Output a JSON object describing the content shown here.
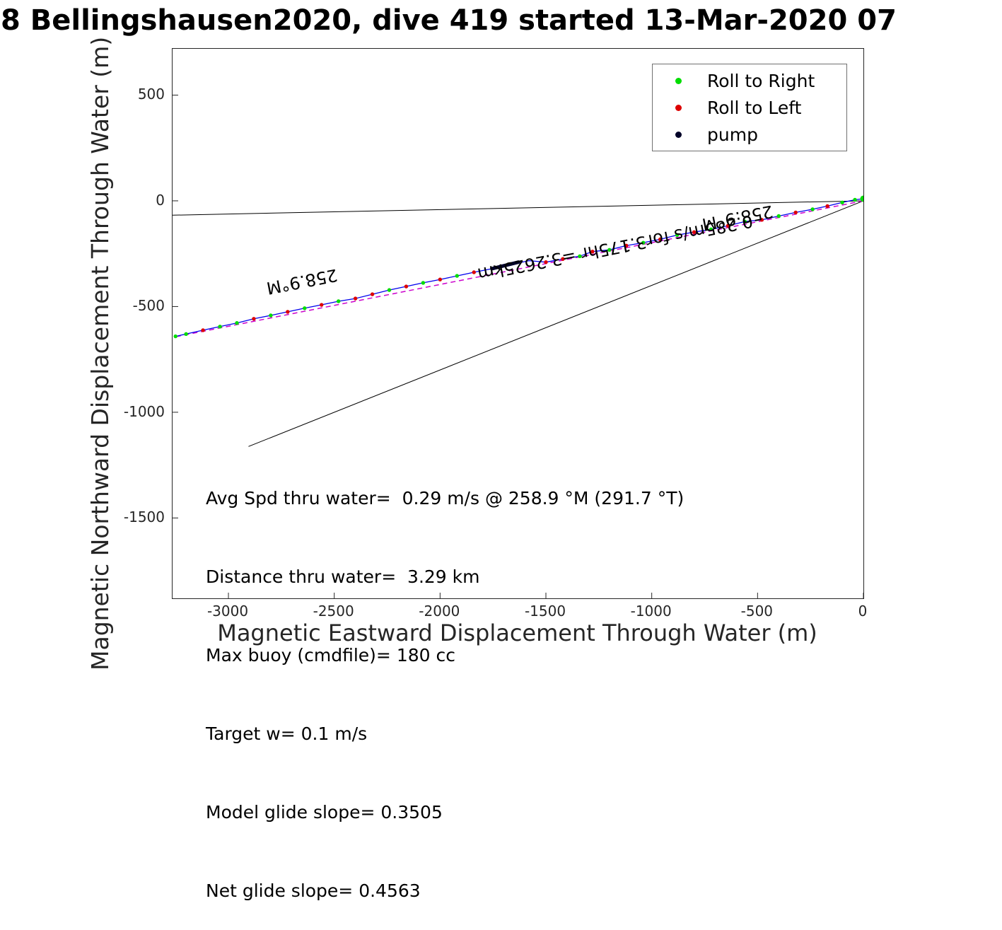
{
  "legend": {
    "items": [
      {
        "label": "Roll to Right",
        "color": "#00dd00"
      },
      {
        "label": "Roll to Left",
        "color": "#dd0000"
      },
      {
        "label": "pump",
        "color": "#000028"
      }
    ]
  },
  "info": {
    "lines": [
      "Avg Spd thru water=  0.29 m/s @ 258.9 °M (291.7 °T)",
      "Distance thru water=  3.29 km",
      "Max buoy (cmdfile)= 180 cc",
      "Target w= 0.1 m/s",
      "Model glide slope= 0.3505",
      "Net glide slope= 0.4563"
    ]
  },
  "chart_data": {
    "type": "line",
    "title": "8 Bellingshausen2020, dive 419 started 13-Mar-2020 07",
    "xlabel": "Magnetic Eastward Displacement Through Water (m)",
    "ylabel": "Magnetic Northward Displacement Through Water (m)",
    "xlim": [
      -3264,
      0
    ],
    "ylim": [
      -1880,
      719
    ],
    "x_ticks": [
      -3000,
      -2500,
      -2000,
      -1500,
      -1000,
      -500,
      0
    ],
    "y_ticks": [
      500,
      0,
      -500,
      -1000,
      -1500
    ],
    "grid": false,
    "legend_position": "top-right",
    "track": {
      "name": "dive track through water",
      "color": "#0000ee",
      "points": [
        [
          0,
          10
        ],
        [
          -40,
          5
        ],
        [
          -100,
          -8
        ],
        [
          -170,
          -25
        ],
        [
          -240,
          -40
        ],
        [
          -320,
          -55
        ],
        [
          -400,
          -72
        ],
        [
          -480,
          -90
        ],
        [
          -560,
          -98
        ],
        [
          -640,
          -118
        ],
        [
          -720,
          -135
        ],
        [
          -800,
          -148
        ],
        [
          -880,
          -162
        ],
        [
          -960,
          -182
        ],
        [
          -1040,
          -198
        ],
        [
          -1120,
          -212
        ],
        [
          -1200,
          -232
        ],
        [
          -1280,
          -240
        ],
        [
          -1340,
          -262
        ],
        [
          -1420,
          -275
        ],
        [
          -1500,
          -290
        ],
        [
          -1580,
          -283
        ],
        [
          -1660,
          -300
        ],
        [
          -1760,
          -322
        ],
        [
          -1840,
          -338
        ],
        [
          -1920,
          -355
        ],
        [
          -2000,
          -372
        ],
        [
          -2080,
          -388
        ],
        [
          -2160,
          -405
        ],
        [
          -2240,
          -422
        ],
        [
          -2320,
          -442
        ],
        [
          -2400,
          -462
        ],
        [
          -2480,
          -475
        ],
        [
          -2560,
          -492
        ],
        [
          -2640,
          -508
        ],
        [
          -2720,
          -525
        ],
        [
          -2800,
          -542
        ],
        [
          -2880,
          -558
        ],
        [
          -2960,
          -578
        ],
        [
          -3040,
          -595
        ],
        [
          -3120,
          -612
        ],
        [
          -3200,
          -630
        ],
        [
          -3250,
          -641
        ]
      ]
    },
    "marker_palette": {
      "g": "#00dd00",
      "r": "#dd0000"
    },
    "marker_colors": [
      "g",
      "g",
      "g",
      "r",
      "g",
      "r",
      "g",
      "r",
      "g",
      "r",
      "g",
      "r",
      "g",
      "r",
      "g",
      "r",
      "g",
      "r",
      "g",
      "r",
      "r",
      null,
      null,
      null,
      "r",
      "g",
      "r",
      "g",
      "r",
      "g",
      "r",
      "r",
      "g",
      "r",
      "g",
      "r",
      "g",
      "r",
      "g",
      "g",
      "r",
      "g",
      "g"
    ],
    "pump_segment": {
      "name": "pump",
      "color": "#000028",
      "points": [
        [
          -1630,
          -290
        ],
        [
          -1755,
          -321
        ]
      ]
    },
    "course_line": {
      "name": "straight-line course",
      "color": "#cc00cc",
      "dashed": true,
      "points": [
        [
          0,
          0
        ],
        [
          -3245,
          -642
        ]
      ]
    },
    "bearing_lines": [
      {
        "color": "#000000",
        "points": [
          [
            0,
            0
          ],
          [
            -3264,
            -68
          ]
        ]
      },
      {
        "color": "#000000",
        "points": [
          [
            0,
            0
          ],
          [
            -2905,
            -1162
          ]
        ]
      }
    ],
    "annotations": [
      {
        "text": "258.9°M",
        "x": -2650,
        "y": -385,
        "rotation_deg": 168.9
      },
      {
        "text": "258.9°M",
        "x": -592,
        "y": -84,
        "rotation_deg": 168.9
      },
      {
        "text": "0.285m/s for3.175hr =3.2625km",
        "x": -1170,
        "y": -224,
        "rotation_deg": 168.9
      }
    ]
  }
}
